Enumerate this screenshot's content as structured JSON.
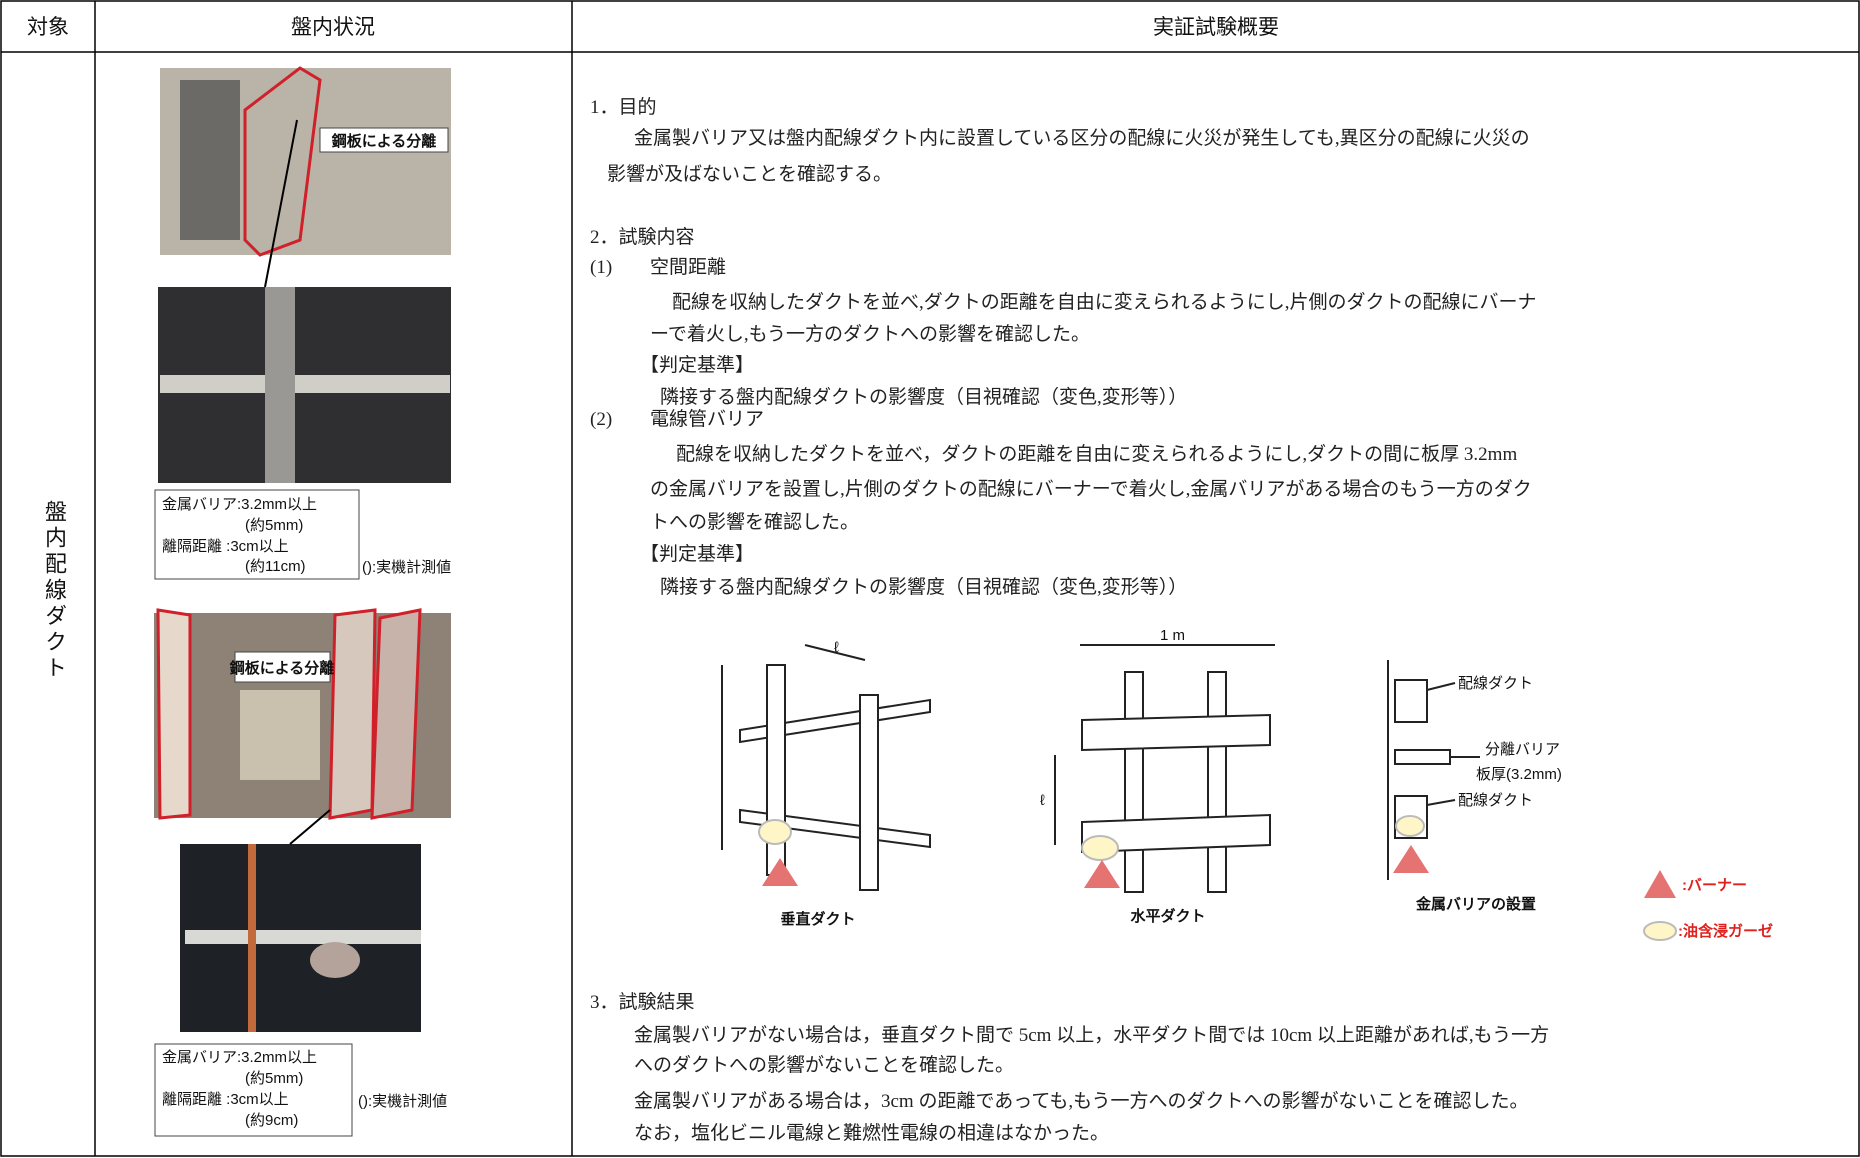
{
  "table": {
    "headers": [
      "対象",
      "盤内状況",
      "実証試験概要"
    ],
    "target": "盤内配線ダクト"
  },
  "photos": {
    "label1": "鋼板による分離",
    "note1": [
      "金属バリア:3.2mm以上",
      "(約5mm)",
      "離隔距離 :3cm以上",
      "(約11cm)"
    ],
    "measured1": "():実機計測値",
    "label2": "鋼板による分離",
    "note2": [
      "金属バリア:3.2mm以上",
      "(約5mm)",
      "離隔距離 :3cm以上",
      "(約9cm)"
    ],
    "measured2": "():実機計測値"
  },
  "summary": {
    "s1_title": "1．目的",
    "s1_lines": [
      "金属製バリア又は盤内配線ダクト内に設置している区分の配線に火災が発生しても,異区分の配線に火災の",
      "影響が及ばないことを確認する。"
    ],
    "s2_title": "2．試験内容",
    "p1_num": "(1)",
    "p1_title": "空間距離",
    "p1_lines": [
      "配線を収納したダクトを並べ,ダクトの距離を自由に変えられるようにし,片側のダクトの配線にバーナ",
      "ーで着火し,もう一方のダクトへの影響を確認した。"
    ],
    "p1_criteria": "【判定基準】",
    "p1_criteria_text": "隣接する盤内配線ダクトの影響度（目視確認（変色,変形等））",
    "p2_num": "(2)",
    "p2_title": "電線管バリア",
    "p2_lines": [
      "配線を収納したダクトを並べ，ダクトの距離を自由に変えられるようにし,ダクトの間に板厚 3.2mm",
      "の金属バリアを設置し,片側のダクトの配線にバーナーで着火し,金属バリアがある場合のもう一方のダク",
      "トへの影響を確認した。"
    ],
    "p2_criteria": "【判定基準】",
    "p2_criteria_text": "隣接する盤内配線ダクトの影響度（目視確認（変色,変形等））",
    "s3_title": "3．試験結果",
    "s3_lines": [
      "金属製バリアがない場合は，垂直ダクト間で 5cm 以上，水平ダクト間では 10cm 以上距離があれば,もう一方",
      "へのダクトへの影響がないことを確認した。",
      "金属製バリアがある場合は，3cm の距離であっても,もう一方へのダクトへの影響がないことを確認した。",
      "なお，塩化ビニル電線と難燃性電線の相違はなかった。"
    ]
  },
  "diagram": {
    "ell": "ℓ",
    "one_m": "1 m",
    "vertical": "垂直ダクト",
    "horizontal": "水平ダクト",
    "barrier": "金属バリアの設置",
    "duct1": "配線ダクト",
    "sep": "分離バリア",
    "thick": "板厚(3.2mm)",
    "duct2": "配線ダクト",
    "burner": ":バーナー",
    "gauze": ":油含浸ガーゼ"
  }
}
